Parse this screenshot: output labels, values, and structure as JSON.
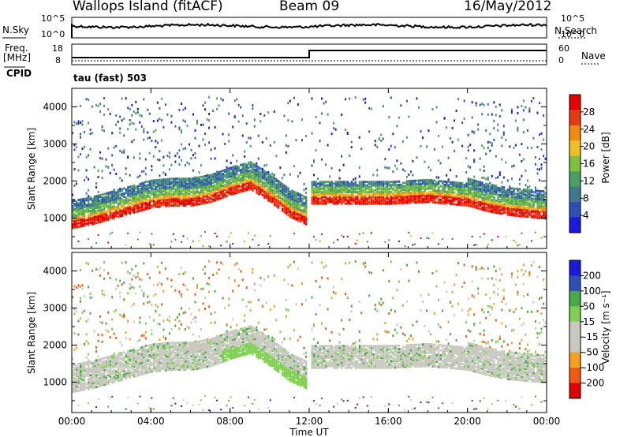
{
  "header": {
    "station": "Wallops Island (fitACF)",
    "beam": "Beam 09",
    "date": "16/May/2012"
  },
  "top_panels": {
    "nsky_label": "N.Sky",
    "nsearch_label": "N.Search",
    "freq_label_line1": "Freq.",
    "freq_label_line2": "[MHz]",
    "cpid_label": "CPID",
    "nave_label": "Nave",
    "left_ticks_noise": [
      "10^5",
      "10^0"
    ],
    "right_ticks_noise": [
      "10^5",
      "10^0"
    ],
    "freq_ticks": [
      "18",
      "8"
    ],
    "nave_ticks": [
      "60",
      "0"
    ],
    "cpid_text": "tau (fast) 503"
  },
  "colors": {
    "power": [
      "#1a1adc",
      "#2f4fb8",
      "#3e7a8c",
      "#49a060",
      "#7fc03a",
      "#f0c020",
      "#f58a10",
      "#e83a10",
      "#e80000"
    ],
    "velocity": [
      "#e00000",
      "#f05a10",
      "#f5a020",
      "#c8c8c0",
      "#c8c8c0",
      "#7fd050",
      "#49a848",
      "#2f4fb8",
      "#1a1adc"
    ]
  },
  "chart_data": [
    {
      "type": "heatmap",
      "title": "",
      "xlabel": "Time UT",
      "ylabel": "Slant Range [km]",
      "x_ticks": [
        "00:00",
        "04:00",
        "08:00",
        "12:00",
        "16:00",
        "20:00",
        "00:00"
      ],
      "y_ticks": [
        1000,
        2000,
        3000,
        4000
      ],
      "xlim_hours": [
        0,
        24
      ],
      "ylim_km": [
        180,
        4500
      ],
      "colorbar_label": "Power [dB]",
      "colorbar_ticks": [
        "28",
        "24",
        "20",
        "16",
        "12",
        "8",
        "4"
      ],
      "main_echo_range_km_by_hour": [
        [
          0,
          850
        ],
        [
          1,
          950
        ],
        [
          2,
          1100
        ],
        [
          3,
          1250
        ],
        [
          4,
          1400
        ],
        [
          5,
          1450
        ],
        [
          6,
          1450
        ],
        [
          7,
          1550
        ],
        [
          8,
          1750
        ],
        [
          9,
          1900
        ],
        [
          10,
          1550
        ],
        [
          11,
          1150
        ],
        [
          12,
          900
        ],
        [
          12.1,
          1500
        ],
        [
          14,
          1500
        ],
        [
          16,
          1500
        ],
        [
          18,
          1550
        ],
        [
          20,
          1450
        ],
        [
          21,
          1300
        ],
        [
          22,
          1200
        ],
        [
          23,
          1150
        ],
        [
          24,
          1100
        ]
      ]
    },
    {
      "type": "heatmap",
      "title": "",
      "xlabel": "Time UT",
      "ylabel": "Slant Range [km]",
      "x_ticks": [
        "00:00",
        "04:00",
        "08:00",
        "12:00",
        "16:00",
        "20:00",
        "00:00"
      ],
      "y_ticks": [
        1000,
        2000,
        3000,
        4000
      ],
      "xlim_hours": [
        0,
        24
      ],
      "ylim_km": [
        180,
        4500
      ],
      "colorbar_label": "Velocity [m s⁻¹]",
      "colorbar_ticks": [
        "200",
        "100",
        "50",
        "15",
        "-15",
        "-50",
        "-100",
        "-200"
      ]
    }
  ]
}
